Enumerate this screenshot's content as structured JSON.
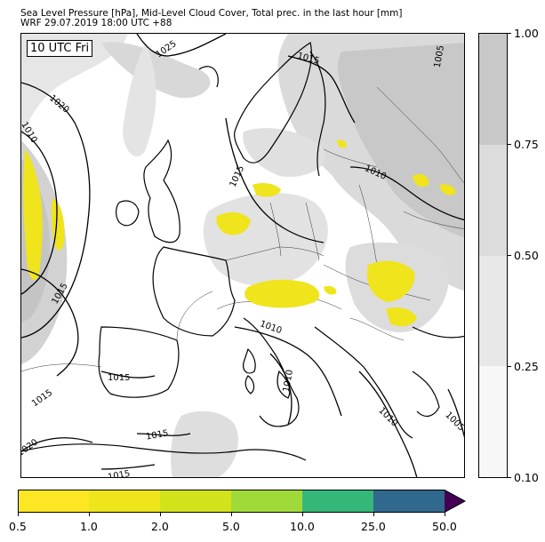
{
  "header": {
    "title_line1": "Sea Level Pressure [hPa], Mid-Level Cloud Cover, Total prec. in the last hour [mm]",
    "title_line2": "WRF 29.07.2019 18:00 UTC +88"
  },
  "map": {
    "time_label": "10 UTC Fri",
    "isobar_labels": [
      "1025",
      "1020",
      "1010",
      "1015",
      "1015",
      "1005",
      "1015",
      "1010",
      "1015",
      "1010",
      "1010",
      "1015",
      "1015",
      "1020",
      "1015",
      "1010",
      "1005"
    ]
  },
  "cloud_colorbar": {
    "ticks": [
      "1.00",
      "0.75",
      "0.50",
      "0.25",
      "0.10"
    ],
    "band_colors": [
      "#c8c8c8",
      "#dcdcdc",
      "#e8e8e8",
      "#f7f7f7"
    ]
  },
  "precip_colorbar": {
    "ticks": [
      "0.5",
      "1.0",
      "2.0",
      "5.0",
      "10.0",
      "25.0",
      "50.0"
    ],
    "colors": [
      "#fde725",
      "#eee51c",
      "#d2e21b",
      "#a0da39",
      "#35b779",
      "#31688e",
      "#440154"
    ]
  }
}
